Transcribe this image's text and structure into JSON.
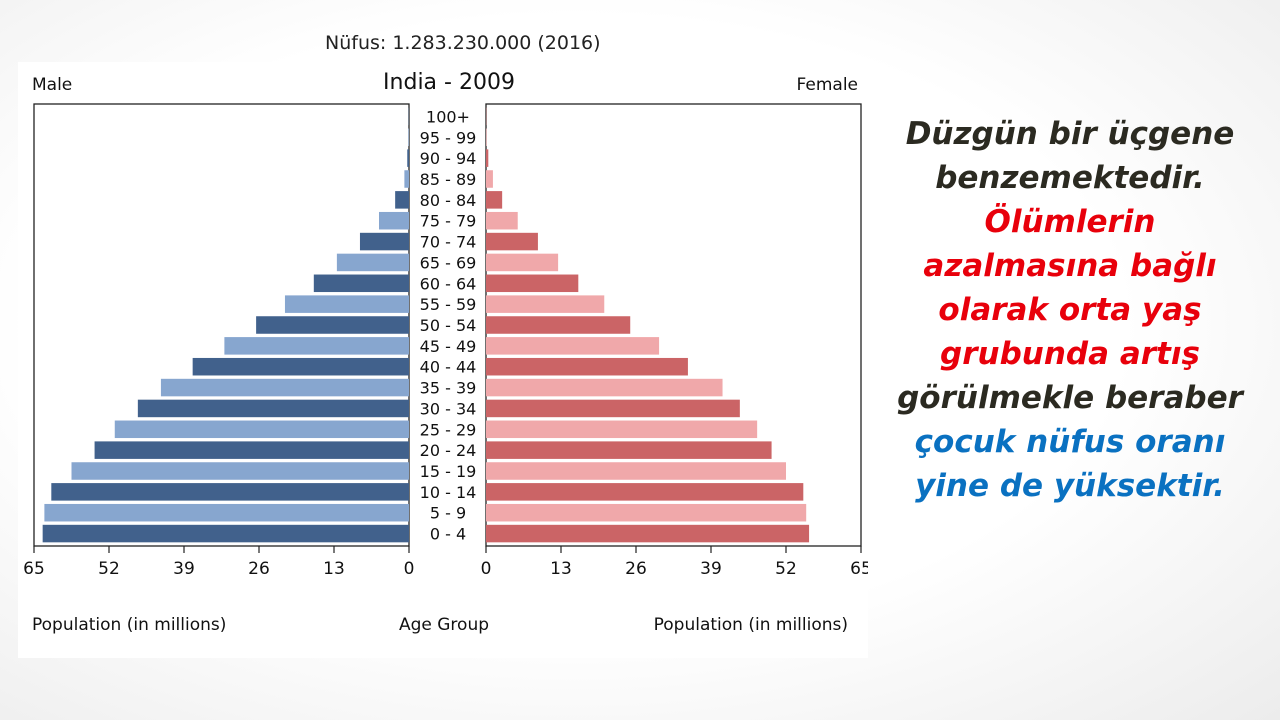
{
  "caption": "Nüfus: 1.283.230.000 (2016)",
  "chart_data": {
    "type": "bar",
    "title": "India - 2009",
    "left_label": "Male",
    "right_label": "Female",
    "xlabel_left": "Population (in millions)",
    "xlabel_center": "Age Group",
    "xlabel_right": "Population (in millions)",
    "xlim": [
      0,
      65
    ],
    "ticks": [
      65,
      52,
      39,
      26,
      13,
      0
    ],
    "ticks_right": [
      0,
      13,
      26,
      39,
      52,
      65
    ],
    "categories": [
      "0 - 4",
      "5 - 9",
      "10 - 14",
      "15 - 19",
      "20 - 24",
      "25 - 29",
      "30 - 34",
      "35 - 39",
      "40 - 44",
      "45 - 49",
      "50 - 54",
      "55 - 59",
      "60 - 64",
      "65 - 69",
      "70 - 74",
      "75 - 79",
      "80 - 84",
      "85 - 89",
      "90 - 94",
      "95 - 99",
      "100+"
    ],
    "series": [
      {
        "name": "Male",
        "values": [
          63.5,
          63.2,
          62.0,
          58.5,
          54.5,
          51.0,
          47.0,
          43.0,
          37.5,
          32.0,
          26.5,
          21.5,
          16.5,
          12.5,
          8.5,
          5.2,
          2.4,
          0.8,
          0.3,
          0.1,
          0.05
        ]
      },
      {
        "name": "Female",
        "values": [
          56.0,
          55.5,
          55.0,
          52.0,
          49.5,
          47.0,
          44.0,
          41.0,
          35.0,
          30.0,
          25.0,
          20.5,
          16.0,
          12.5,
          9.0,
          5.5,
          2.8,
          1.2,
          0.4,
          0.1,
          0.05
        ]
      }
    ],
    "colors": {
      "male_dark": "#41618c",
      "male_light": "#87a6cf",
      "female_dark": "#cb6466",
      "female_light": "#f0a8aa"
    },
    "grid": false,
    "legend": "none"
  },
  "side_text": {
    "line1": "Düzgün bir üçgene",
    "line2": "benzemektedir.",
    "line3": "Ölümlerin",
    "line4": "azalmasına bağlı",
    "line5": "olarak orta yaş",
    "line6": "grubunda artış",
    "line7": "görülmekle beraber",
    "line8": "çocuk nüfus oranı",
    "line9": "yine de yüksektir.",
    "colors": {
      "dark": "#2b2a21",
      "red": "#e8000b",
      "blue": "#0a71c1"
    }
  }
}
